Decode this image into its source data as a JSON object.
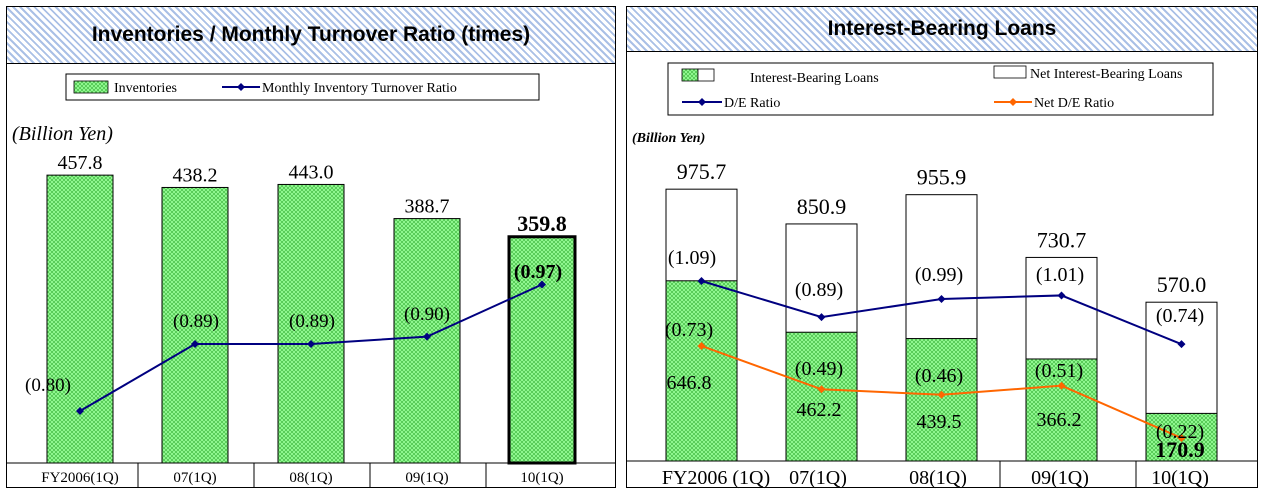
{
  "left_chart": {
    "title": "Inventories / Monthly Turnover Ratio (times)",
    "unit": "(Billion Yen)",
    "chart_data": {
      "type": "bar",
      "categories": [
        "FY2006(1Q)",
        "07(1Q)",
        "08(1Q)",
        "09(1Q)",
        "10(1Q)"
      ],
      "series": [
        {
          "name": "Inventories",
          "type": "bar",
          "values": [
            457.8,
            438.2,
            443.0,
            388.7,
            359.8
          ],
          "labels": [
            "457.8",
            "438.2",
            "443.0",
            "388.7",
            "359.8"
          ]
        },
        {
          "name": "Monthly Inventory Turnover Ratio",
          "type": "line",
          "values": [
            0.8,
            0.89,
            0.89,
            0.9,
            0.97
          ],
          "labels": [
            "(0.80)",
            "(0.89)",
            "(0.89)",
            "(0.90)",
            "(0.97)"
          ]
        }
      ],
      "highlight_index": 4,
      "legend_position": "top",
      "colors": {
        "bar_fill": "#99ff99",
        "bar_pattern": "#44bb44",
        "line": "#000080"
      }
    }
  },
  "right_chart": {
    "title": "Interest-Bearing Loans",
    "unit": "(Billion Yen)",
    "chart_data": {
      "type": "bar",
      "stacked": true,
      "categories": [
        "FY2006 (1Q)",
        "07(1Q)",
        "08(1Q)",
        "09(1Q)",
        "10(1Q)"
      ],
      "series": [
        {
          "name": "Interest-Bearing Loans",
          "type": "bar",
          "values": [
            975.7,
            850.9,
            955.9,
            730.7,
            570.0
          ],
          "labels": [
            "975.7",
            "850.9",
            "955.9",
            "730.7",
            "570.0"
          ]
        },
        {
          "name": "Net Interest-Bearing Loans",
          "type": "bar",
          "values": [
            646.8,
            462.2,
            439.5,
            366.2,
            170.9
          ],
          "labels": [
            "646.8",
            "462.2",
            "439.5",
            "366.2",
            "170.9"
          ]
        },
        {
          "name": "D/E Ratio",
          "type": "line",
          "values": [
            1.09,
            0.89,
            0.99,
            1.01,
            0.74
          ],
          "labels": [
            "(1.09)",
            "(0.89)",
            "(0.99)",
            "(1.01)",
            "(0.74)"
          ]
        },
        {
          "name": "Net D/E Ratio",
          "type": "line",
          "values": [
            0.73,
            0.49,
            0.46,
            0.51,
            0.22
          ],
          "labels": [
            "(0.73)",
            "(0.49)",
            "(0.46)",
            "(0.51)",
            "(0.22)"
          ]
        }
      ],
      "legend_position": "top",
      "colors": {
        "green": "#99ff99",
        "de_line": "#000080",
        "net_de_line": "#ff6600"
      }
    }
  }
}
